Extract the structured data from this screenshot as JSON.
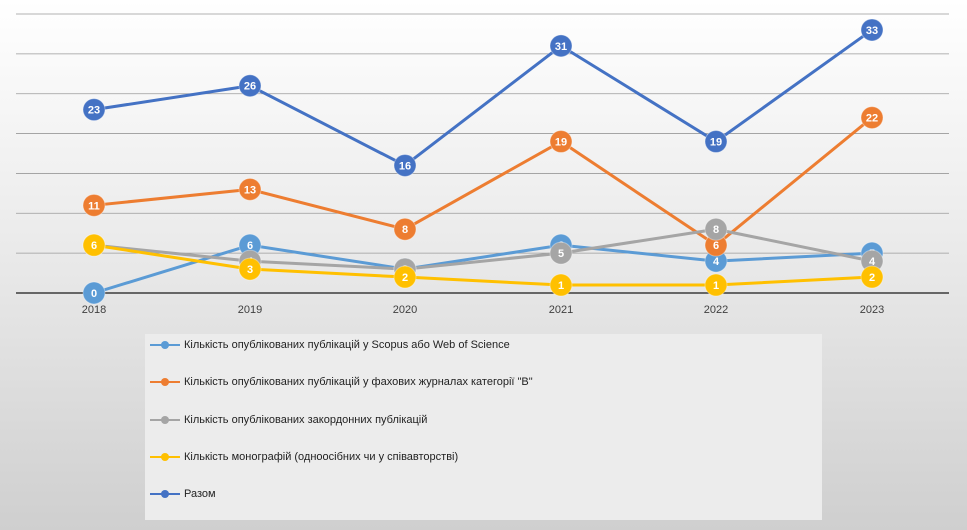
{
  "chart_data": {
    "type": "line",
    "categories": [
      "2018",
      "2019",
      "2020",
      "2021",
      "2022",
      "2023"
    ],
    "ylim": [
      0,
      35
    ],
    "grid": true,
    "legend_position": "bottom",
    "series": [
      {
        "name": "Кількість опублікованих публікацій у Scopus або Web of Science",
        "color": "#5b9bd5",
        "values": [
          0,
          6,
          3,
          6,
          4,
          5
        ]
      },
      {
        "name": "Кількість опублікованих публікацій  у фахових журналах категорії \"В\"",
        "color": "#ed7d31",
        "values": [
          11,
          13,
          8,
          19,
          6,
          22
        ]
      },
      {
        "name": "Кількість опублікованих  закордонних публікацій",
        "color": "#a5a5a5",
        "values": [
          6,
          4,
          3,
          5,
          8,
          4
        ]
      },
      {
        "name": "Кількість монографій (одноосібних чи у співавторстві)",
        "color": "#ffc000",
        "values": [
          6,
          3,
          2,
          1,
          1,
          2
        ]
      },
      {
        "name": "Разом",
        "color": "#4472c4",
        "values": [
          23,
          26,
          16,
          31,
          19,
          33
        ]
      }
    ]
  }
}
